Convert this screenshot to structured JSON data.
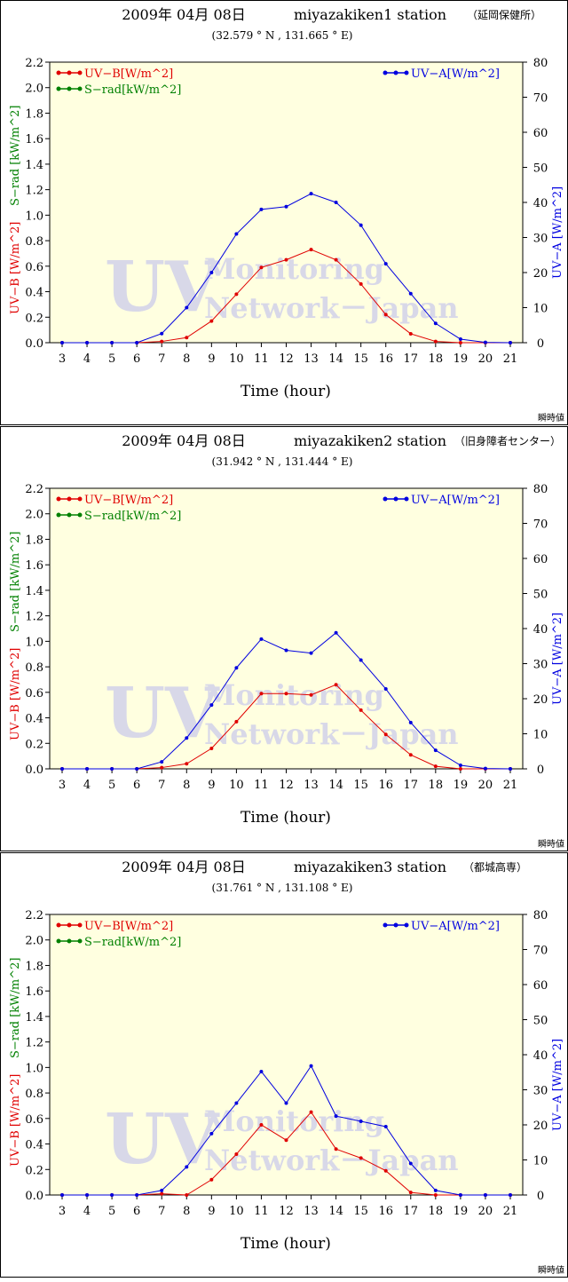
{
  "charts": [
    {
      "date": "2009年 04月 08日",
      "station": "miyazakiken1 station",
      "place": "（延岡保健所）",
      "coords": "(32.579 ° N , 131.665 ° E)",
      "note": "瞬時値"
    },
    {
      "date": "2009年 04月 08日",
      "station": "miyazakiken2 station",
      "place": "（旧身障者センター）",
      "coords": "(31.942 ° N , 131.444 ° E)",
      "note": "瞬時値"
    },
    {
      "date": "2009年 04月 08日",
      "station": "miyazakiken3 station",
      "place": "（都城高専）",
      "coords": "(31.761 ° N , 131.108 ° E)",
      "note": "瞬時値"
    }
  ],
  "watermark": {
    "line1": "UV",
    "line2": "Monitoring",
    "line3": "Network－Japan"
  },
  "colors": {
    "uvb": "#e00000",
    "uva": "#0000e0",
    "srad": "#008000",
    "plot_bg": "#ffffe0",
    "watermark": "#d8d8e8"
  },
  "chart_data": [
    {
      "type": "line",
      "xlabel": "Time (hour)",
      "ylabel_left_uvb": "UV−B [W/m^2]",
      "ylabel_left_srad": "S−rad [kW/m^2]",
      "ylabel_right": "UV−A [W/m^2]",
      "x": [
        3,
        4,
        5,
        6,
        7,
        8,
        9,
        10,
        11,
        12,
        13,
        14,
        15,
        16,
        17,
        18,
        19,
        20,
        21
      ],
      "ylim_left": [
        0,
        2.2
      ],
      "yticks_left": [
        "0.0",
        "0.2",
        "0.4",
        "0.6",
        "0.8",
        "1.0",
        "1.2",
        "1.4",
        "1.6",
        "1.8",
        "2.0",
        "2.2"
      ],
      "ylim_right": [
        0,
        80
      ],
      "yticks_right": [
        "0",
        "10",
        "20",
        "30",
        "40",
        "50",
        "60",
        "70",
        "80"
      ],
      "legend": {
        "uvb": "UV−B[W/m^2]",
        "srad": "S−rad[kW/m^2]",
        "uva": "UV−A[W/m^2]"
      },
      "series": [
        {
          "name": "UV−B[W/m^2]",
          "axis": "left",
          "x": [
            3,
            4,
            5,
            6,
            7,
            8,
            9,
            10,
            11,
            12,
            13,
            14,
            15,
            16,
            17,
            18,
            19,
            20,
            21
          ],
          "values": [
            0,
            0,
            0,
            0,
            0.01,
            0.04,
            0.17,
            0.38,
            0.59,
            0.65,
            0.73,
            0.65,
            0.46,
            0.22,
            0.07,
            0.01,
            0,
            0,
            0
          ]
        },
        {
          "name": "UV−A[W/m^2]",
          "axis": "right",
          "x": [
            3,
            4,
            5,
            6,
            7,
            8,
            9,
            10,
            11,
            12,
            13,
            14,
            15,
            16,
            17,
            18,
            19,
            20,
            21
          ],
          "values": [
            0,
            0,
            0,
            0,
            2.6,
            10,
            20,
            31,
            38,
            38.8,
            42.5,
            40,
            33.5,
            22.5,
            14,
            5.5,
            1,
            0.1,
            0
          ]
        }
      ]
    },
    {
      "type": "line",
      "xlabel": "Time (hour)",
      "ylabel_left_uvb": "UV−B [W/m^2]",
      "ylabel_left_srad": "S−rad [kW/m^2]",
      "ylabel_right": "UV−A [W/m^2]",
      "x": [
        3,
        4,
        5,
        6,
        7,
        8,
        9,
        10,
        11,
        12,
        13,
        14,
        15,
        16,
        17,
        18,
        19,
        20,
        21
      ],
      "ylim_left": [
        0,
        2.2
      ],
      "yticks_left": [
        "0.0",
        "0.2",
        "0.4",
        "0.6",
        "0.8",
        "1.0",
        "1.2",
        "1.4",
        "1.6",
        "1.8",
        "2.0",
        "2.2"
      ],
      "ylim_right": [
        0,
        80
      ],
      "yticks_right": [
        "0",
        "10",
        "20",
        "30",
        "40",
        "50",
        "60",
        "70",
        "80"
      ],
      "legend": {
        "uvb": "UV−B[W/m^2]",
        "srad": "S−rad[kW/m^2]",
        "uva": "UV−A[W/m^2]"
      },
      "series": [
        {
          "name": "UV−B[W/m^2]",
          "axis": "left",
          "x": [
            3,
            4,
            5,
            6,
            7,
            8,
            9,
            10,
            11,
            12,
            13,
            14,
            15,
            16,
            17,
            18,
            19,
            20,
            21
          ],
          "values": [
            0,
            0,
            0,
            0,
            0.01,
            0.04,
            0.16,
            0.37,
            0.59,
            0.59,
            0.58,
            0.66,
            0.46,
            0.27,
            0.11,
            0.02,
            0,
            0,
            0
          ]
        },
        {
          "name": "UV−A[W/m^2]",
          "axis": "right",
          "x": [
            3,
            4,
            5,
            6,
            7,
            8,
            9,
            10,
            11,
            12,
            13,
            14,
            15,
            16,
            17,
            18,
            19,
            20,
            21
          ],
          "values": [
            0,
            0,
            0,
            0,
            2,
            8.8,
            18.2,
            28.8,
            37,
            33.8,
            33,
            38.8,
            31,
            22.8,
            13.2,
            5.3,
            1,
            0.1,
            0
          ]
        }
      ]
    },
    {
      "type": "line",
      "xlabel": "Time (hour)",
      "ylabel_left_uvb": "UV−B [W/m^2]",
      "ylabel_left_srad": "S−rad [kW/m^2]",
      "ylabel_right": "UV−A [W/m^2]",
      "x": [
        3,
        4,
        5,
        6,
        7,
        8,
        9,
        10,
        11,
        12,
        13,
        14,
        15,
        16,
        17,
        18,
        19,
        20,
        21
      ],
      "ylim_left": [
        0,
        2.2
      ],
      "yticks_left": [
        "0.0",
        "0.2",
        "0.4",
        "0.6",
        "0.8",
        "1.0",
        "1.2",
        "1.4",
        "1.6",
        "1.8",
        "2.0",
        "2.2"
      ],
      "ylim_right": [
        0,
        80
      ],
      "yticks_right": [
        "0",
        "10",
        "20",
        "30",
        "40",
        "50",
        "60",
        "70",
        "80"
      ],
      "legend": {
        "uvb": "UV−B[W/m^2]",
        "srad": "S−rad[kW/m^2]",
        "uva": "UV−A[W/m^2]"
      },
      "series": [
        {
          "name": "UV−B[W/m^2]",
          "axis": "left",
          "x": [
            3,
            4,
            5,
            6,
            7,
            8,
            9,
            10,
            11,
            12,
            13,
            14,
            15,
            16,
            17,
            18,
            19,
            20,
            21
          ],
          "values": [
            0,
            0,
            0,
            0,
            0.01,
            0,
            0.12,
            0.32,
            0.55,
            0.43,
            0.65,
            0.36,
            0.29,
            0.19,
            0.02,
            0,
            0,
            0,
            0
          ]
        },
        {
          "name": "UV−A[W/m^2]",
          "axis": "right",
          "x": [
            3,
            4,
            5,
            6,
            7,
            8,
            9,
            10,
            11,
            12,
            13,
            14,
            15,
            16,
            17,
            18,
            19,
            20,
            21
          ],
          "values": [
            0,
            0,
            0,
            0,
            1.3,
            8,
            17.5,
            26.2,
            35.2,
            26.2,
            36.8,
            22.5,
            21,
            19.5,
            9,
            1.3,
            0,
            0,
            0
          ]
        }
      ]
    }
  ]
}
